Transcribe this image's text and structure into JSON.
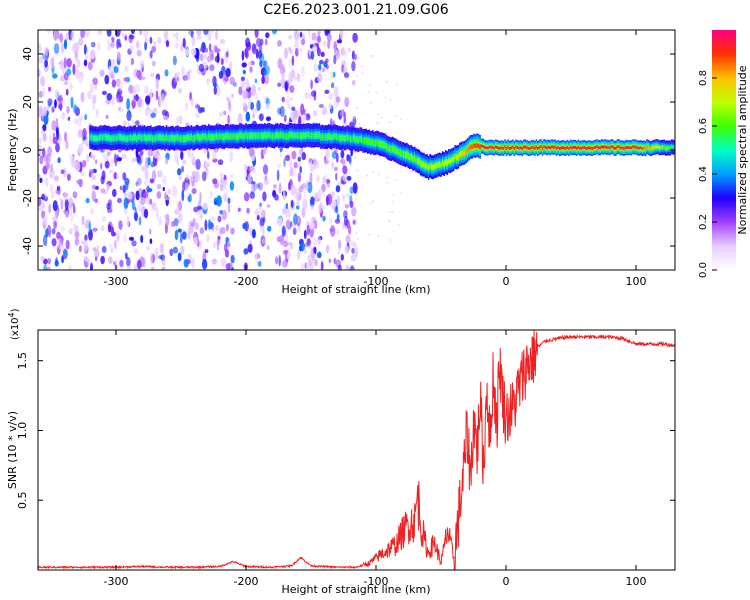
{
  "figure": {
    "title": "C2E6.2023.001.21.09.G06"
  },
  "chart_data": [
    {
      "type": "heatmap",
      "xlabel": "Height of straight line (km)",
      "ylabel": "Frequency (Hz)",
      "xlim": [
        -360,
        130
      ],
      "ylim": [
        -50,
        50
      ],
      "x_ticks": [
        -300,
        -200,
        -100,
        0,
        100
      ],
      "y_ticks": [
        -40,
        -20,
        0,
        20,
        40
      ],
      "grid": false,
      "colorbar": {
        "label": "Normalized spectral amplitude",
        "range": [
          0.0,
          1.0
        ],
        "ticks": [
          0.0,
          0.2,
          0.4,
          0.6,
          0.8
        ],
        "colors": [
          "#ffffff",
          "#e8ccff",
          "#a040ff",
          "#2000ff",
          "#00a0ff",
          "#00ffc0",
          "#40ff00",
          "#c0ff00",
          "#ffc000",
          "#ff3000",
          "#ff0080"
        ]
      },
      "ridge": {
        "x": [
          -320,
          -250,
          -200,
          -150,
          -120,
          -100,
          -85,
          -70,
          -60,
          -55,
          -45,
          -35,
          -25,
          -15,
          0,
          20,
          50,
          80,
          100,
          130
        ],
        "y": [
          5,
          5,
          6,
          6,
          5,
          3,
          0,
          -4,
          -7,
          -7,
          -5,
          -2,
          2,
          1,
          1,
          1,
          1,
          1,
          1,
          1
        ],
        "amplitude": [
          0.4,
          0.45,
          0.45,
          0.45,
          0.45,
          0.5,
          0.5,
          0.55,
          0.6,
          0.6,
          0.6,
          0.7,
          0.85,
          0.9,
          0.9,
          0.92,
          0.92,
          0.92,
          0.92,
          0.4
        ]
      },
      "noise_region_x": [
        -360,
        -115
      ]
    },
    {
      "type": "line",
      "xlabel": "Height of straight line (km)",
      "ylabel": "SNR (10 * v/v)",
      "scale_note": "(x10",
      "scale_exp": "4",
      "scale_close": ")",
      "xlim": [
        -360,
        130
      ],
      "ylim": [
        0,
        1.72
      ],
      "x_ticks": [
        -300,
        -200,
        -100,
        0,
        100
      ],
      "y_ticks": [
        0.5,
        1.0,
        1.5
      ],
      "y_tick_labels": [
        "0.5",
        "1.0",
        "1.5"
      ],
      "grid": false,
      "color": "#ee2222",
      "series": [
        {
          "x": [
            -360,
            -320,
            -300,
            -280,
            -260,
            -240,
            -220,
            -210,
            -200,
            -180,
            -165,
            -158,
            -150,
            -130,
            -115,
            -105,
            -95,
            -85,
            -80,
            -75,
            -70,
            -68,
            -65,
            -60,
            -55,
            -50,
            -45,
            -40,
            -35,
            -32,
            -30,
            -27,
            -25,
            -22,
            -20,
            -17,
            -15,
            -12,
            -10,
            -7,
            -5,
            -2,
            0,
            5,
            10,
            15,
            20,
            25,
            30,
            40,
            50,
            60,
            70,
            80,
            90,
            100,
            110,
            120,
            130
          ],
          "y": [
            0.02,
            0.02,
            0.02,
            0.025,
            0.02,
            0.02,
            0.025,
            0.06,
            0.025,
            0.02,
            0.03,
            0.09,
            0.03,
            0.02,
            0.02,
            0.05,
            0.12,
            0.18,
            0.26,
            0.33,
            0.35,
            0.55,
            0.3,
            0.12,
            0.2,
            0.05,
            0.28,
            0.08,
            0.5,
            0.75,
            1.0,
            0.65,
            1.1,
            0.85,
            1.25,
            0.7,
            1.35,
            0.9,
            1.4,
            1.05,
            1.5,
            1.2,
            1.1,
            1.15,
            1.3,
            1.45,
            1.52,
            1.6,
            1.64,
            1.66,
            1.67,
            1.67,
            1.67,
            1.67,
            1.66,
            1.62,
            1.62,
            1.62,
            1.61
          ]
        }
      ]
    }
  ]
}
